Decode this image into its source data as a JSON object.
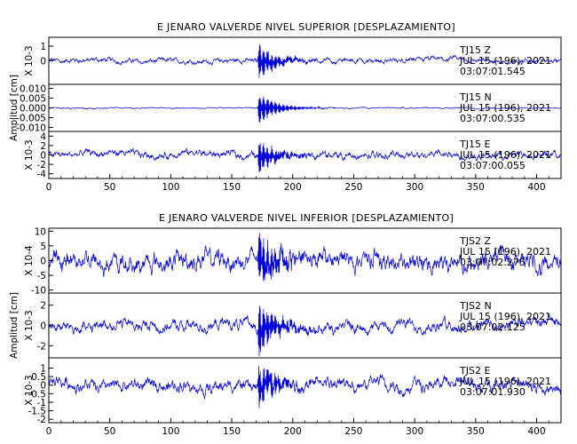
{
  "chart_data": [
    {
      "type": "line",
      "title": "E JENARO VALVERDE NIVEL SUPERIOR [DESPLAZAMIENTO]",
      "ylabel": "Amplitud [cm]",
      "xlim": [
        0,
        420
      ],
      "x_ticks": [
        "0",
        "50",
        "100",
        "150",
        "200",
        "250",
        "300",
        "350",
        "400"
      ],
      "grid": false,
      "panels": [
        {
          "station": "TJ15",
          "component": "Z",
          "date": "JUL 15 (196), 2021",
          "time": "03:07:01.545",
          "scale": "X 10-3",
          "y_ticks": [
            "1",
            "0"
          ],
          "ylim": [
            -1.6,
            1.6
          ],
          "event_peak": 1.4,
          "background": 0.2,
          "event_color": "#0000cc"
        },
        {
          "station": "TJ15",
          "component": "N",
          "date": "JUL 15 (196), 2021",
          "time": "03:07:00.535",
          "scale": "",
          "y_ticks": [
            "0.010",
            "0.005",
            "0.000",
            "-0.005",
            "-0.010"
          ],
          "ylim": [
            -0.012,
            0.012
          ],
          "event_peak": 0.0095,
          "background": 0.0004,
          "event_color": "#000080"
        },
        {
          "station": "TJ15",
          "component": "E",
          "date": "JUL 15 (196), 2021",
          "time": "03:07:00.055",
          "scale": "X 10-3",
          "y_ticks": [
            "4",
            "2",
            "0",
            "-2",
            "-4"
          ],
          "ylim": [
            -5,
            5
          ],
          "event_peak": 4.2,
          "background": 0.9,
          "event_color": "#000080"
        }
      ]
    },
    {
      "type": "line",
      "title": "E JENARO VALVERDE NIVEL INFERIOR [DESPLAZAMIENTO]",
      "ylabel": "Amplitud [cm]",
      "xlim": [
        0,
        420
      ],
      "x_ticks": [
        "0",
        "50",
        "100",
        "150",
        "200",
        "250",
        "300",
        "350",
        "400"
      ],
      "grid": false,
      "panels": [
        {
          "station": "TJS2",
          "component": "Z",
          "date": "JUL 15 (196), 2021",
          "time": "03:07:02.275",
          "scale": "X 10-4",
          "y_ticks": [
            "10",
            "5",
            "0",
            "-5",
            "-10"
          ],
          "ylim": [
            -11,
            11
          ],
          "event_peak": 10.5,
          "background": 4.0,
          "event_color": "#0000cc"
        },
        {
          "station": "TJS2",
          "component": "N",
          "date": "JUL 15 (196), 2021",
          "time": "03:07:02.125",
          "scale": "X 10-3",
          "y_ticks": [
            "2",
            "0",
            "-2"
          ],
          "ylim": [
            -3.2,
            3.2
          ],
          "event_peak": 3.0,
          "background": 0.7,
          "event_color": "#0000cc"
        },
        {
          "station": "TJS2",
          "component": "E",
          "date": "JUL 15 (196), 2021",
          "time": "03:07:01.930",
          "scale": "X 10-3",
          "y_ticks": [
            "1",
            "0.5",
            "0",
            "-0.5",
            "-1",
            "-1.5",
            "-2"
          ],
          "ylim": [
            -2.2,
            1.6
          ],
          "event_peak": 1.5,
          "background": 0.45,
          "event_color": "#000080"
        }
      ]
    }
  ],
  "colors": {
    "trace": "#0000dd",
    "axes": "#000000",
    "background": "#ffffff"
  }
}
